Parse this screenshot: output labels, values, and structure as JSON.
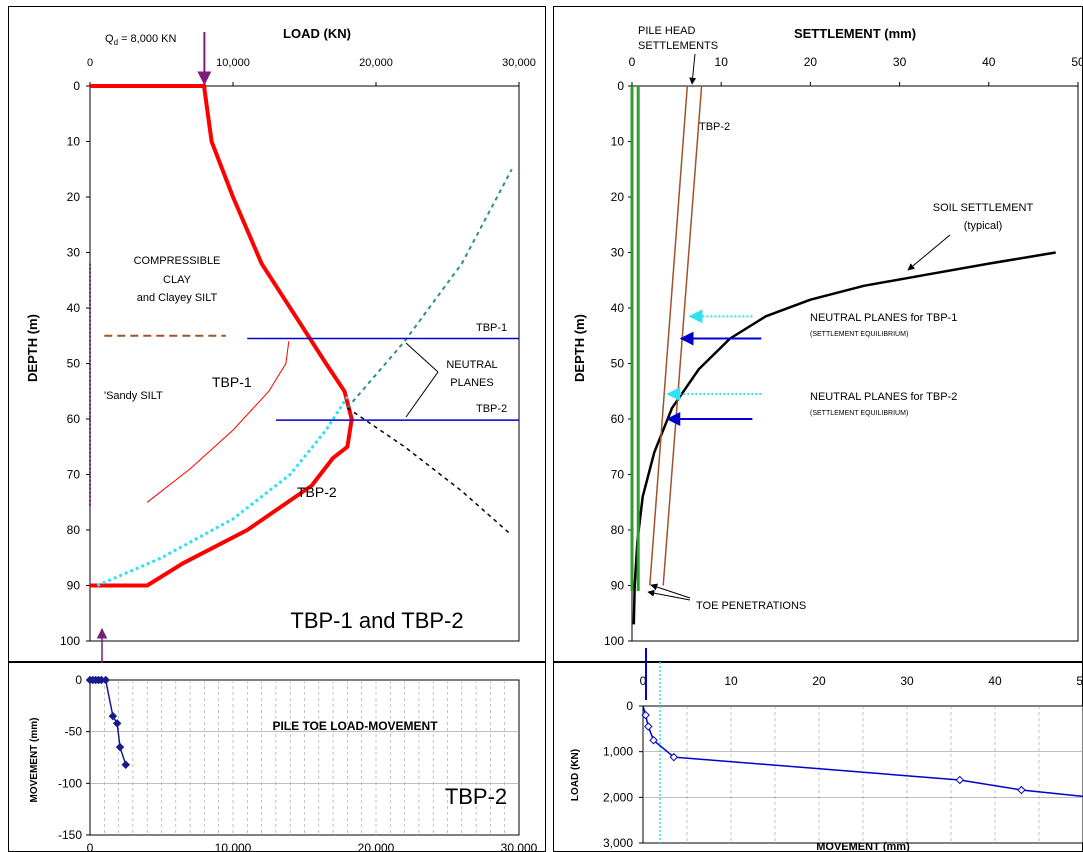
{
  "colors": {
    "red": "#ff0000",
    "cyan": "#33e0f0",
    "blue": "#0000cc",
    "brown": "#a0522d",
    "green": "#2e9e2e",
    "teal": "#2a8f8f",
    "purple": "#7b1f7b",
    "black": "#000000",
    "darkred": "#c00000",
    "navy": "#1a1a8c"
  },
  "chart_data": [
    {
      "id": "load_depth",
      "type": "line",
      "title": "LOAD  (KN)",
      "xlabel": "LOAD  (KN)",
      "ylabel": "DEPTH  (m)",
      "xlim": [
        0,
        30000
      ],
      "ylim": [
        0,
        100
      ],
      "x_ticks": [
        "0",
        "10,000",
        "20,000",
        "30,000"
      ],
      "y_ticks": [
        "0",
        "10",
        "20",
        "30",
        "40",
        "50",
        "60",
        "70",
        "80",
        "90",
        "100"
      ],
      "grid": false,
      "series": [
        {
          "name": "TBP-2",
          "color": "red",
          "x": [
            0,
            8000,
            8000,
            8500,
            10000,
            12000,
            14500,
            16500,
            17800,
            18300,
            18000,
            17000,
            15500,
            11000,
            6500,
            4000,
            0
          ],
          "y": [
            0,
            0,
            0.5,
            10,
            20,
            32,
            42,
            50,
            55,
            60,
            65,
            67,
            72,
            80,
            86,
            90,
            90
          ]
        },
        {
          "name": "TBP-1",
          "color": "red",
          "x": [
            4000,
            7000,
            10000,
            12500,
            13700,
            13900
          ],
          "y": [
            75,
            69,
            62,
            55,
            50,
            46
          ]
        },
        {
          "name": "",
          "color": "cyan",
          "x": [
            500,
            5000,
            10000,
            14000,
            16500,
            18000
          ],
          "y": [
            90,
            85,
            78,
            70,
            62,
            56
          ]
        },
        {
          "name": "",
          "color": "teal",
          "x": [
            18000,
            22000,
            26000,
            29500
          ],
          "y": [
            58,
            46,
            32,
            15
          ]
        },
        {
          "name": "",
          "color": "black",
          "x": [
            18000,
            22000,
            26000,
            29300
          ],
          "y": [
            58,
            65,
            73,
            80.5
          ]
        },
        {
          "name": "",
          "color": "purple",
          "x": [
            0,
            0
          ],
          "y": [
            32,
            76
          ]
        }
      ],
      "annotations": {
        "qd_label": "Q",
        "qd_sub": "d",
        "qd_value": " = 8,000 KN",
        "compressible_1": "COMPRESSIBLE",
        "compressible_2": "CLAY",
        "compressible_3": "and Clayey SILT",
        "sandy_silt": "'Sandy SILT",
        "tbp1_curve": "TBP-1",
        "tbp2_curve": "TBP-2",
        "tbp1_line": "TBP-1",
        "tbp2_line": "TBP-2",
        "neutral_1": "NEUTRAL",
        "neutral_2": "PLANES",
        "big_label": "TBP-1  and  TBP-2"
      },
      "horizontal_lines": [
        {
          "depth": 45,
          "x_from": 1000,
          "x_to": 9500,
          "color": "brown"
        },
        {
          "depth": 45.5,
          "x_from": 11000,
          "x_to": 30000,
          "color": "blue"
        },
        {
          "depth": 60.2,
          "x_from": 13000,
          "x_to": 30000,
          "color": "blue"
        }
      ]
    },
    {
      "id": "settlement_depth",
      "type": "line",
      "title": "SETTLEMENT  (mm)",
      "xlabel": "SETTLEMENT  (mm)",
      "ylabel": "DEPTH  (m)",
      "xlim": [
        0,
        50
      ],
      "ylim": [
        0,
        100
      ],
      "x_ticks": [
        "0",
        "10",
        "20",
        "30",
        "40",
        "50"
      ],
      "y_ticks": [
        "0",
        "10",
        "20",
        "30",
        "40",
        "50",
        "60",
        "70",
        "80",
        "90",
        "100"
      ],
      "grid": false,
      "series": [
        {
          "name": "SOIL SETTLEMENT (typical)",
          "color": "black",
          "x": [
            0.2,
            0.3,
            0.6,
            1.2,
            2.5,
            4.5,
            7.5,
            11,
            15,
            20,
            26,
            33,
            40,
            47.5
          ],
          "y": [
            97,
            90,
            82,
            74,
            66,
            58,
            51,
            45.5,
            41.5,
            38.5,
            36,
            34,
            32,
            30
          ]
        },
        {
          "name": "TBP-1",
          "color": "brown",
          "x": [
            6.2,
            2.0
          ],
          "y": [
            0,
            90
          ]
        },
        {
          "name": "TBP-2",
          "color": "brown",
          "x": [
            7.8,
            3.5
          ],
          "y": [
            0,
            90
          ]
        },
        {
          "name": "",
          "color": "green",
          "x": [
            0,
            0
          ],
          "y": [
            0,
            91
          ]
        },
        {
          "name": "",
          "color": "green",
          "x": [
            0.7,
            0.7
          ],
          "y": [
            0,
            91
          ]
        }
      ],
      "annotations": {
        "pile_head_1": "PILE HEAD",
        "pile_head_2": "SETTLEMENTS",
        "tbp2_label": "TBP-2",
        "soil_1": "SOIL SETTLEMENT",
        "soil_2": "(typical)",
        "np1_main": "NEUTRAL PLANES  for TBP-1",
        "np1_sub": "(SETTLEMENT EQUILIBRIUM)",
        "np2_main": "NEUTRAL PLANES  for TBP-2",
        "np2_sub": "(SETTLEMENT EQUILIBRIUM)",
        "toe": "TOE PENETRATIONS"
      },
      "arrows": [
        {
          "depth": 41.5,
          "x_from": 13.5,
          "x_to": 6.5,
          "color": "cyan",
          "style": "dotted"
        },
        {
          "depth": 45.5,
          "x_from": 14.5,
          "x_to": 5.5,
          "color": "blue",
          "style": "solid"
        },
        {
          "depth": 55.5,
          "x_from": 14.5,
          "x_to": 4.0,
          "color": "cyan",
          "style": "dotted"
        },
        {
          "depth": 60.0,
          "x_from": 13.5,
          "x_to": 4.0,
          "color": "blue",
          "style": "solid"
        }
      ]
    },
    {
      "id": "toe_load_movement",
      "type": "scatter",
      "title": "PILE  TOE  LOAD-MOVEMENT",
      "xlabel": "",
      "ylabel": "MOVEMENT  (mm)",
      "xlim": [
        0,
        30000
      ],
      "ylim": [
        -150,
        0
      ],
      "x_ticks": [
        "0",
        "10,000",
        "20,000",
        "30,000"
      ],
      "y_ticks": [
        "0",
        "-50",
        "-100",
        "-150"
      ],
      "grid": true,
      "series": [
        {
          "name": "TBP-2",
          "color": "navy",
          "x": [
            0,
            200,
            400,
            600,
            800,
            1100,
            1600,
            1900,
            2100,
            2500
          ],
          "y": [
            0,
            0,
            0,
            0,
            0,
            0,
            -35,
            -42,
            -65,
            -82
          ]
        }
      ],
      "big_label": "TBP-2"
    },
    {
      "id": "movement_load",
      "type": "line",
      "title": "",
      "xlabel": "MOVEMENT  (mm)",
      "ylabel": "LOAD  (KN)",
      "xlim": [
        0,
        50
      ],
      "ylim": [
        3000,
        0
      ],
      "x_ticks": [
        "0",
        "10",
        "20",
        "30",
        "40",
        "50"
      ],
      "y_ticks": [
        "0",
        "1,000",
        "2,000",
        "3,000"
      ],
      "grid": true,
      "series": [
        {
          "name": "",
          "color": "blue",
          "x": [
            0,
            0.3,
            0.6,
            1.2,
            3.5,
            36,
            43,
            50
          ],
          "y": [
            0,
            200,
            450,
            750,
            1120,
            1620,
            1840,
            1980
          ]
        }
      ]
    }
  ]
}
